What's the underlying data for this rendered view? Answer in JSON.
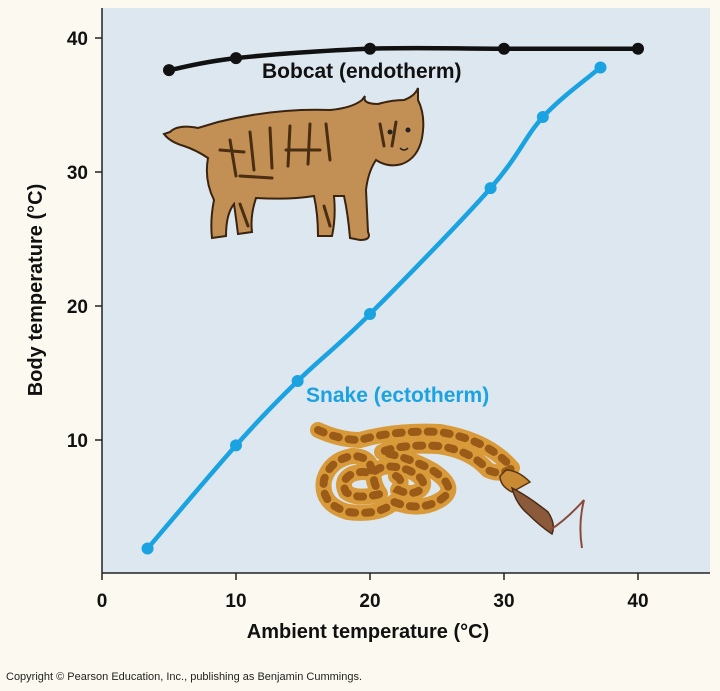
{
  "chart_data": {
    "type": "line",
    "title": "",
    "xlabel": "Ambient temperature (°C)",
    "ylabel": "Body temperature (°C)",
    "xlim": [
      0,
      45
    ],
    "ylim": [
      0,
      42
    ],
    "x_ticks": [
      0,
      10,
      20,
      30,
      40
    ],
    "y_ticks": [
      10,
      20,
      30,
      40
    ],
    "grid": false,
    "series": [
      {
        "name": "Bobcat (endotherm)",
        "color": "#111111",
        "x": [
          5,
          10,
          20,
          30,
          40
        ],
        "y": [
          37.6,
          38.5,
          39.2,
          39.2,
          39.2
        ]
      },
      {
        "name": "Snake (ectotherm)",
        "color": "#1aa3e0",
        "x": [
          3.4,
          10,
          14.6,
          20,
          29,
          32.9,
          37.2
        ],
        "y": [
          1.9,
          9.6,
          14.4,
          19.4,
          28.8,
          34.1,
          37.8
        ]
      }
    ],
    "illustrations": [
      "bobcat-illustration",
      "snake-illustration"
    ]
  },
  "copyright": "Copyright © Pearson Education, Inc., publishing as Benjamin Cummings.",
  "colors": {
    "plot_background": "#dce7f0",
    "page_background": "#fcfaf0"
  }
}
